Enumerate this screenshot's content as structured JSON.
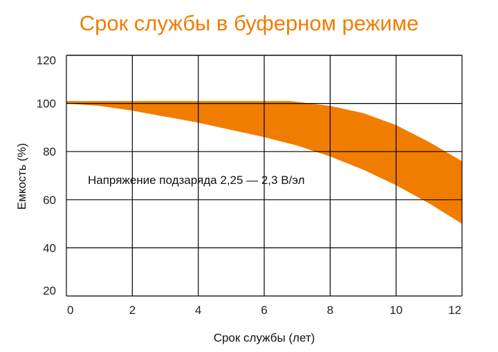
{
  "chart_data": {
    "type": "area",
    "title": "Срок службы в буферном режиме",
    "xlabel": "Срок службы (лет)",
    "ylabel": "Емкость (%)",
    "xlim": [
      0,
      12
    ],
    "ylim": [
      20,
      120
    ],
    "x_ticks": [
      "0",
      "2",
      "4",
      "6",
      "8",
      "10",
      "12"
    ],
    "y_ticks": [
      "20",
      "40",
      "60",
      "80",
      "100",
      "120"
    ],
    "grid": true,
    "annotation": "Напряжение подзаряда 2,25 — 2,3 В/эл",
    "band_color": "#f07d00",
    "series": [
      {
        "x": [
          0,
          1,
          2,
          3,
          4,
          5,
          6,
          6.8,
          8,
          9,
          10,
          11,
          12
        ],
        "values": [
          101,
          101,
          101,
          101,
          101,
          101,
          101,
          101,
          99,
          96,
          91,
          84,
          76
        ]
      },
      {
        "x": [
          0,
          1,
          2,
          3,
          4,
          5,
          6,
          7,
          8,
          9,
          10,
          11,
          12
        ],
        "values": [
          100,
          99,
          97,
          94.5,
          92,
          89,
          86,
          82.5,
          78,
          72.5,
          66,
          58.5,
          50
        ]
      }
    ]
  }
}
